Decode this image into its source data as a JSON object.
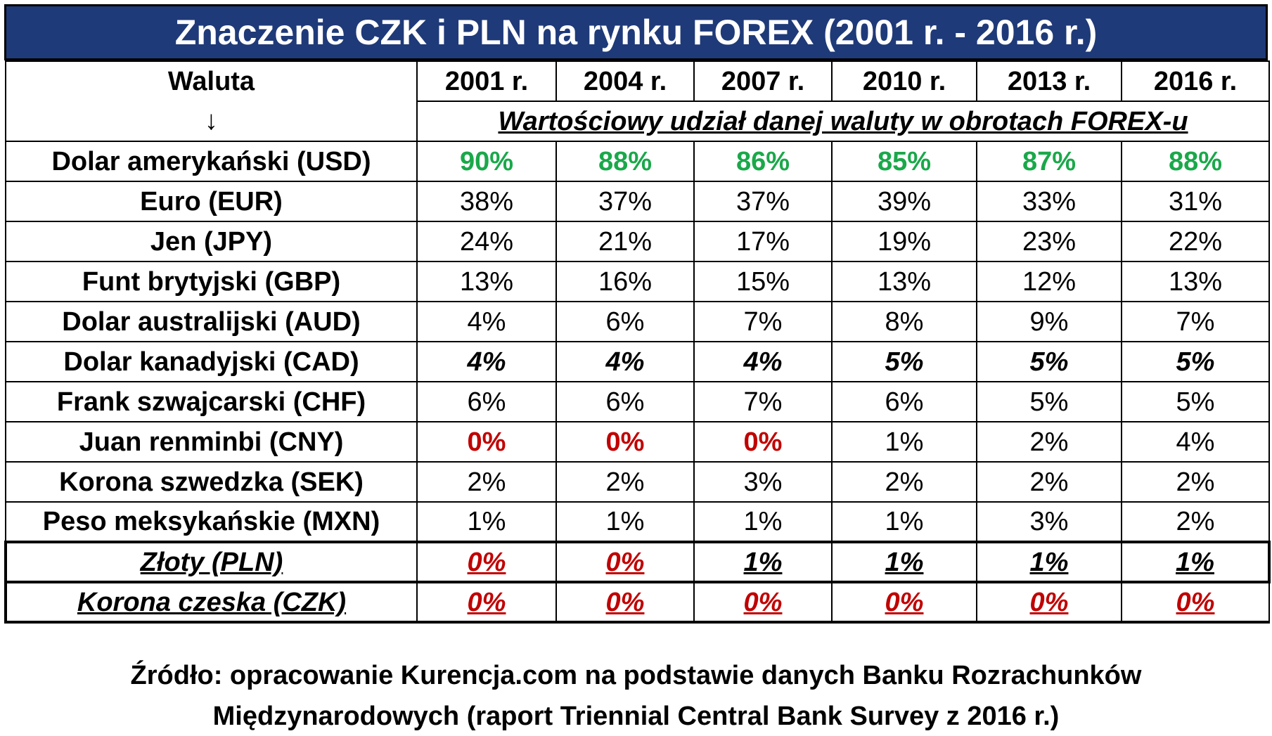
{
  "chart_data": {
    "type": "table",
    "title": "Znaczenie CZK i PLN na rynku FOREX (2001 r. - 2016 r.)",
    "row_header": "Waluta",
    "row_header_arrow": "↓",
    "columns": [
      "2001 r.",
      "2004 r.",
      "2007 r.",
      "2010 r.",
      "2013 r.",
      "2016 r."
    ],
    "subheader": "Wartościowy udział danej waluty w obrotach FOREX-u",
    "rows": [
      {
        "label": "Dolar amerykański (USD)",
        "values": [
          "90%",
          "88%",
          "86%",
          "85%",
          "87%",
          "88%"
        ],
        "style": "green"
      },
      {
        "label": "Euro (EUR)",
        "values": [
          "38%",
          "37%",
          "37%",
          "39%",
          "33%",
          "31%"
        ],
        "style": "normal"
      },
      {
        "label": "Jen (JPY)",
        "values": [
          "24%",
          "21%",
          "17%",
          "19%",
          "23%",
          "22%"
        ],
        "style": "normal"
      },
      {
        "label": "Funt brytyjski (GBP)",
        "values": [
          "13%",
          "16%",
          "15%",
          "13%",
          "12%",
          "13%"
        ],
        "style": "normal"
      },
      {
        "label": "Dolar australijski (AUD)",
        "values": [
          "4%",
          "6%",
          "7%",
          "8%",
          "9%",
          "7%"
        ],
        "style": "normal"
      },
      {
        "label": "Dolar kanadyjski (CAD)",
        "values": [
          "4%",
          "4%",
          "4%",
          "5%",
          "5%",
          "5%"
        ],
        "style": "bolditalic"
      },
      {
        "label": "Frank szwajcarski (CHF)",
        "values": [
          "6%",
          "6%",
          "7%",
          "6%",
          "5%",
          "5%"
        ],
        "style": "normal"
      },
      {
        "label": "Juan renminbi (CNY)",
        "values": [
          "0%",
          "0%",
          "0%",
          "1%",
          "2%",
          "4%"
        ],
        "style": "cny"
      },
      {
        "label": "Korona szwedzka (SEK)",
        "values": [
          "2%",
          "2%",
          "3%",
          "2%",
          "2%",
          "2%"
        ],
        "style": "normal"
      },
      {
        "label": "Peso meksykańskie (MXN)",
        "values": [
          "1%",
          "1%",
          "1%",
          "1%",
          "3%",
          "2%"
        ],
        "style": "normal"
      },
      {
        "label": "Złoty (PLN)",
        "values": [
          "0%",
          "0%",
          "1%",
          "1%",
          "1%",
          "1%"
        ],
        "style": "pln"
      },
      {
        "label": "Korona czeska (CZK)",
        "values": [
          "0%",
          "0%",
          "0%",
          "0%",
          "0%",
          "0%"
        ],
        "style": "czk"
      }
    ]
  },
  "colors": {
    "title_bg": "#1f3a78",
    "green": "#1aa84a",
    "red": "#c00000"
  },
  "footer": {
    "line1": "Źródło: opracowanie Kurencja.com na podstawie danych Banku Rozrachunków",
    "line2": "Międzynarodowych (raport Triennial Central Bank Survey z 2016 r.)"
  }
}
